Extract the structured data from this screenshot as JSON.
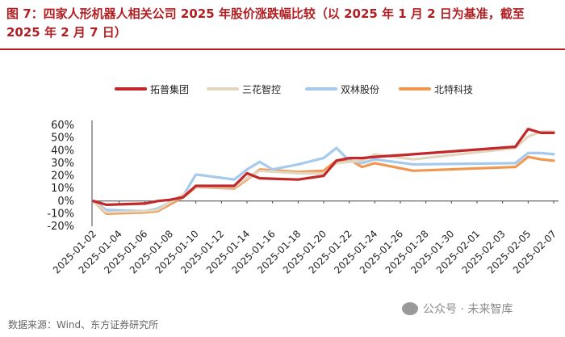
{
  "figure": {
    "title": "图 7：四家人形机器人相关公司 2025 年股价涨跌幅比较（以 2025 年 1 月 2 日为基准，截至 2025 年 2 月 7 日）",
    "source": "数据来源：Wind、东方证券研究所",
    "watermark": "公众号 · 未来智库",
    "accent_color": "#b01e22"
  },
  "chart_data": {
    "type": "line",
    "title": "图 7：四家人形机器人相关公司 2025 年股价涨跌幅比较（以 2025 年 1 月 2 日为基准，截至 2025 年 2 月 7 日）",
    "xlabel": "",
    "ylabel": "",
    "ylim": [
      -20,
      60
    ],
    "yticks": [
      -20,
      -10,
      0,
      10,
      20,
      30,
      40,
      50,
      60
    ],
    "ytick_labels": [
      "-20%",
      "-10%",
      "0%",
      "10%",
      "20%",
      "30%",
      "40%",
      "50%",
      "60%"
    ],
    "xlim": [
      0,
      36
    ],
    "xticks": [
      {
        "day": 0,
        "label": "2025-01-02"
      },
      {
        "day": 2,
        "label": "2025-01-04"
      },
      {
        "day": 4,
        "label": "2025-01-06"
      },
      {
        "day": 6,
        "label": "2025-01-08"
      },
      {
        "day": 8,
        "label": "2025-01-10"
      },
      {
        "day": 10,
        "label": "2025-01-12"
      },
      {
        "day": 12,
        "label": "2025-01-14"
      },
      {
        "day": 14,
        "label": "2025-01-16"
      },
      {
        "day": 16,
        "label": "2025-01-18"
      },
      {
        "day": 18,
        "label": "2025-01-20"
      },
      {
        "day": 20,
        "label": "2025-01-22"
      },
      {
        "day": 22,
        "label": "2025-01-24"
      },
      {
        "day": 24,
        "label": "2025-01-26"
      },
      {
        "day": 26,
        "label": "2025-01-28"
      },
      {
        "day": 28,
        "label": "2025-01-30"
      },
      {
        "day": 30,
        "label": "2025-02-01"
      },
      {
        "day": 32,
        "label": "2025-02-03"
      },
      {
        "day": 34,
        "label": "2025-02-05"
      },
      {
        "day": 36,
        "label": "2025-02-07"
      }
    ],
    "legend_position": "top",
    "series": [
      {
        "name": "拓普集团",
        "color": "#c0282a",
        "x": [
          0,
          1,
          4,
          5,
          6,
          7,
          8,
          11,
          12,
          13,
          16,
          18,
          19,
          20,
          21,
          22,
          25,
          33,
          34,
          35,
          36
        ],
        "values": [
          0,
          -3,
          -2,
          0,
          1,
          3,
          12,
          12,
          22,
          18,
          17,
          20,
          32,
          34,
          34,
          35,
          37,
          43,
          57,
          54,
          54
        ]
      },
      {
        "name": "三花智控",
        "color": "#e3d6c0",
        "x": [
          0,
          1,
          4,
          5,
          7,
          8,
          11,
          12,
          13,
          16,
          18,
          19,
          20,
          21,
          22,
          25,
          33,
          34,
          35,
          36
        ],
        "values": [
          0,
          -9,
          -8,
          -7,
          5,
          11,
          11,
          18,
          24,
          22,
          22,
          30,
          31,
          32,
          37,
          33,
          42,
          51,
          55,
          55
        ]
      },
      {
        "name": "双林股份",
        "color": "#a6c9ee",
        "x": [
          0,
          1,
          4,
          5,
          7,
          8,
          11,
          12,
          13,
          14,
          16,
          18,
          19,
          20,
          21,
          22,
          25,
          33,
          34,
          35,
          36
        ],
        "values": [
          0,
          -7,
          -8,
          -6,
          4,
          21,
          17,
          25,
          31,
          25,
          29,
          34,
          42,
          32,
          30,
          33,
          29,
          30,
          38,
          38,
          37
        ]
      },
      {
        "name": "北特科技",
        "color": "#f0974f",
        "x": [
          0,
          1,
          4,
          5,
          7,
          8,
          11,
          12,
          13,
          16,
          18,
          19,
          20,
          21,
          22,
          25,
          33,
          34,
          35,
          36
        ],
        "values": [
          0,
          -10,
          -9,
          -8,
          3,
          11,
          10,
          17,
          25,
          23,
          24,
          32,
          33,
          27,
          30,
          24,
          27,
          35,
          33,
          32
        ]
      }
    ]
  }
}
